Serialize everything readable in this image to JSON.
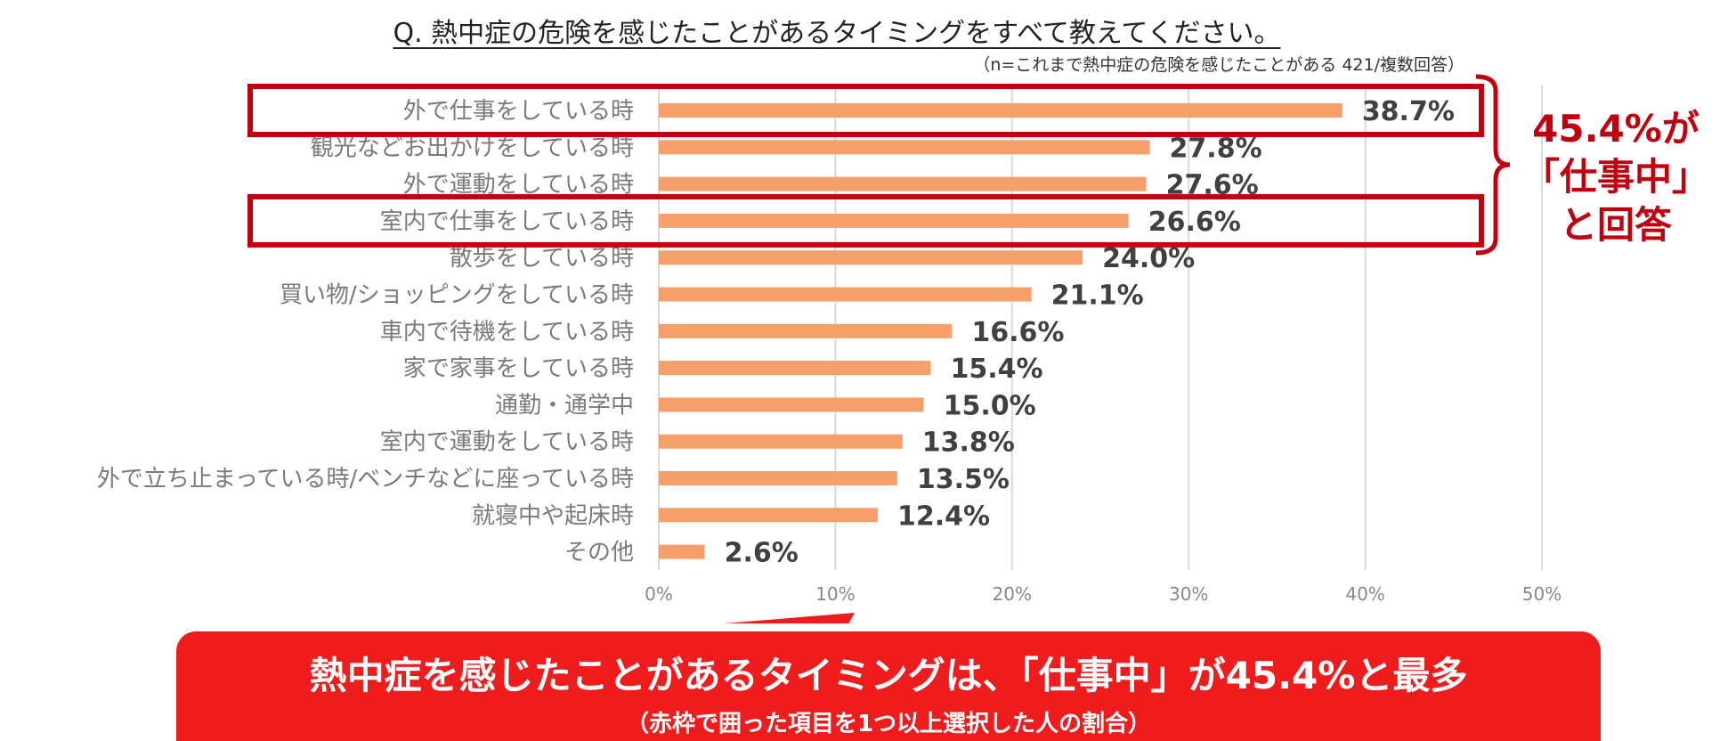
{
  "title": "Q. 熱中症の危険を感じたことがあるタイミングをすべて教えてください。",
  "note": "（n=これまで熱中症の危険を感じたことがある 421/複数回答）",
  "callout": {
    "line1": "45.4%が",
    "line2": "「仕事中」",
    "line3": "と回答"
  },
  "banner": {
    "main": "熱中症を感じたことがあるタイミングは、「仕事中」が45.4%と最多",
    "sub": "（赤枠で囲った項目を1つ以上選択した人の割合）"
  },
  "colors": {
    "bar": "#f5a06a",
    "highlight": "#c0000f",
    "banner": "#ee1c1c",
    "grid": "#d9d9d9"
  },
  "chart_data": {
    "type": "bar",
    "orientation": "horizontal",
    "title": "Q. 熱中症の危険を感じたことがあるタイミングをすべて教えてください。",
    "categories": [
      "外で仕事をしている時",
      "観光などお出かけをしている時",
      "外で運動をしている時",
      "室内で仕事をしている時",
      "散歩をしている時",
      "買い物/ショッピングをしている時",
      "車内で待機をしている時",
      "家で家事をしている時",
      "通勤・通学中",
      "室内で運動をしている時",
      "外で立ち止まっている時/ベンチなどに座っている時",
      "就寝中や起床時",
      "その他"
    ],
    "values": [
      38.7,
      27.8,
      27.6,
      26.6,
      24.0,
      21.1,
      16.6,
      15.4,
      15.0,
      13.8,
      13.5,
      12.4,
      2.6
    ],
    "value_labels": [
      "38.7%",
      "27.8%",
      "27.6%",
      "26.6%",
      "24.0%",
      "21.1%",
      "16.6%",
      "15.4%",
      "15.0%",
      "13.8%",
      "13.5%",
      "12.4%",
      "2.6%"
    ],
    "highlighted": [
      "外で仕事をしている時",
      "室内で仕事をしている時"
    ],
    "xlim": [
      0,
      50
    ],
    "xticks": [
      0,
      10,
      20,
      30,
      40,
      50
    ],
    "xtick_labels": [
      "0%",
      "10%",
      "20%",
      "30%",
      "40%",
      "50%"
    ],
    "xlabel": "",
    "ylabel": "",
    "grid": true
  }
}
